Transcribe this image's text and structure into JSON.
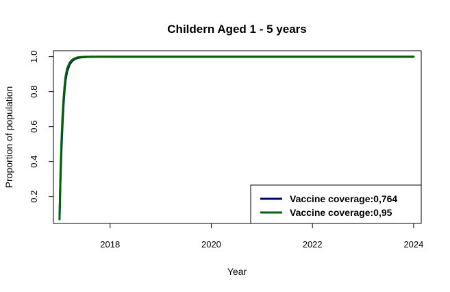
{
  "chart_data": {
    "type": "line",
    "title": "Childern Aged 1 - 5 years",
    "xlabel": "Year",
    "ylabel": "Proportion of population",
    "xlim": [
      2016.88,
      2024.15
    ],
    "ylim": [
      0.046,
      1.034
    ],
    "xticks": [
      "2018",
      "2020",
      "2022",
      "2024"
    ],
    "yticks": [
      "0.2",
      "0.4",
      "0.6",
      "0.8",
      "1.0"
    ],
    "legend_position": "bottom-right",
    "grid": false,
    "series": [
      {
        "name": "Vaccine coverage:0,764",
        "color": "#000080",
        "x": [
          2017.0,
          2017.02,
          2017.04,
          2017.06,
          2017.08,
          2017.1,
          2017.12,
          2017.15,
          2017.2,
          2017.25,
          2017.3,
          2017.35,
          2017.4,
          2017.5,
          2017.6,
          2017.8,
          2018.0,
          2019.0,
          2020.0,
          2021.0,
          2022.0,
          2023.0,
          2024.0
        ],
        "y": [
          0.07,
          0.3,
          0.48,
          0.62,
          0.73,
          0.81,
          0.865,
          0.915,
          0.955,
          0.975,
          0.986,
          0.992,
          0.995,
          0.998,
          0.999,
          1.0,
          1.0,
          1.0,
          1.0,
          1.0,
          1.0,
          1.0,
          1.0
        ]
      },
      {
        "name": "Vaccine coverage:0,95",
        "color": "#006400",
        "x": [
          2017.0,
          2017.02,
          2017.04,
          2017.06,
          2017.08,
          2017.1,
          2017.12,
          2017.15,
          2017.2,
          2017.25,
          2017.3,
          2017.35,
          2017.4,
          2017.5,
          2017.6,
          2017.8,
          2018.0,
          2019.0,
          2020.0,
          2021.0,
          2022.0,
          2023.0,
          2024.0
        ],
        "y": [
          0.07,
          0.33,
          0.52,
          0.66,
          0.76,
          0.835,
          0.885,
          0.93,
          0.965,
          0.982,
          0.99,
          0.995,
          0.997,
          0.999,
          1.0,
          1.0,
          1.0,
          1.0,
          1.0,
          1.0,
          1.0,
          1.0,
          1.0
        ]
      }
    ]
  }
}
